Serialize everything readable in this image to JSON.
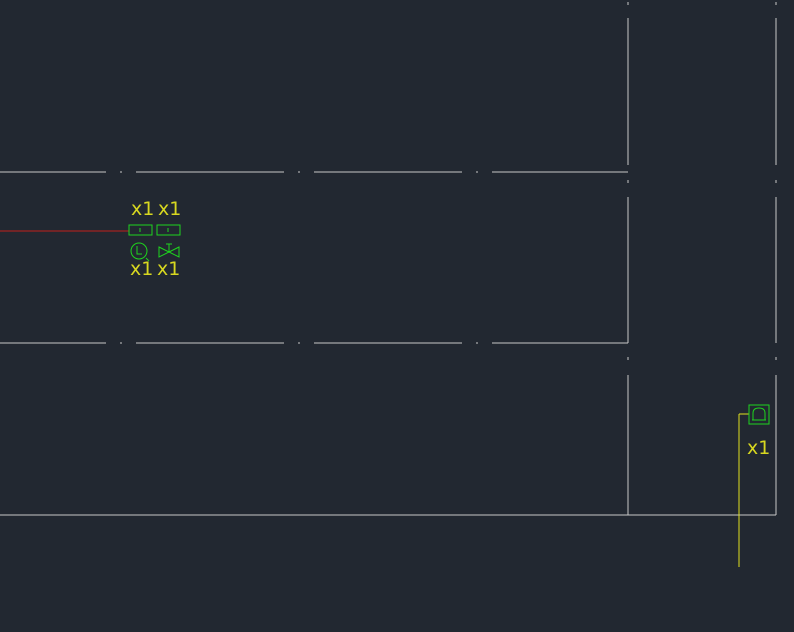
{
  "drawing": {
    "background": "#222831",
    "colors": {
      "wall": "#c8c8c8",
      "pipe_red": "#c0201c",
      "symbol_green": "#1ed41e",
      "label_yellow": "#d8d820",
      "pipe_yellow": "#e0e020"
    },
    "labels": {
      "top_left": "x1",
      "top_right": "x1",
      "bottom_left": "x1",
      "bottom_right": "x1",
      "device": "x1"
    },
    "icons": {
      "box_left": "equipment-box-icon",
      "box_right": "equipment-box-icon",
      "circle_l": "level-gauge-icon",
      "valve": "valve-icon",
      "device": "drain-trap-icon"
    }
  }
}
